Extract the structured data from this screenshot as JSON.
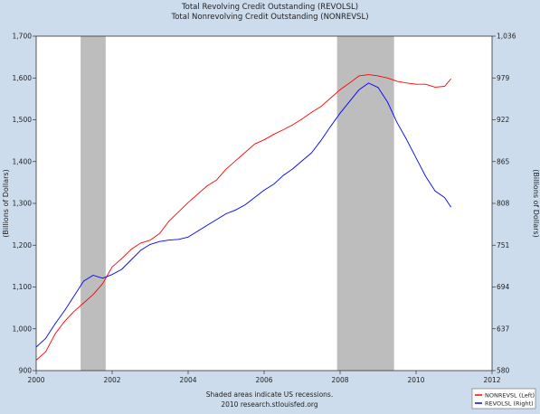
{
  "chart_data": {
    "type": "line",
    "title": "Total Revolving Credit Outstanding (REVOLSL)",
    "subtitle": "Total Nonrevolving Credit Outstanding (NONREVSL)",
    "ylabel_left": "(Billions of Dollars)",
    "ylabel_right": "(Billions of Dollars)",
    "xlim": [
      2000,
      2012
    ],
    "ylim_left": [
      900,
      1700
    ],
    "ylim_right": [
      580,
      1036
    ],
    "x_ticks": [
      2000,
      2002,
      2004,
      2006,
      2008,
      2010,
      2012
    ],
    "x_tick_labels": [
      "2000",
      "2002",
      "2004",
      "2006",
      "2008",
      "2010",
      "2012"
    ],
    "y_left_ticks": [
      900,
      1000,
      1100,
      1200,
      1300,
      1400,
      1500,
      1600,
      1700
    ],
    "y_left_tick_labels": [
      "900",
      "1,000",
      "1,100",
      "1,200",
      "1,300",
      "1,400",
      "1,500",
      "1,600",
      "1,700"
    ],
    "y_right_ticks": [
      580,
      637,
      694,
      751,
      808,
      865,
      922,
      979,
      1036
    ],
    "y_right_tick_labels": [
      "580",
      "637",
      "694",
      "751",
      "808",
      "865",
      "922",
      "979",
      "1,036"
    ],
    "recessions": [
      [
        2001.17,
        2001.83
      ],
      [
        2007.92,
        2009.42
      ]
    ],
    "grid": false,
    "legend_position": "bottom-right",
    "footer_lines": [
      "Shaded areas indicate US recessions.",
      "2010 research.stlouisfed.org"
    ],
    "series": [
      {
        "name": "NONREVSL (Left)",
        "axis": "left",
        "color": "#ff0000",
        "points": [
          [
            2000.0,
            925
          ],
          [
            2000.25,
            945
          ],
          [
            2000.5,
            988
          ],
          [
            2000.75,
            1018
          ],
          [
            2001.0,
            1042
          ],
          [
            2001.25,
            1062
          ],
          [
            2001.5,
            1082
          ],
          [
            2001.75,
            1108
          ],
          [
            2002.0,
            1148
          ],
          [
            2002.25,
            1168
          ],
          [
            2002.5,
            1190
          ],
          [
            2002.75,
            1205
          ],
          [
            2003.0,
            1212
          ],
          [
            2003.25,
            1228
          ],
          [
            2003.5,
            1258
          ],
          [
            2003.75,
            1280
          ],
          [
            2004.0,
            1302
          ],
          [
            2004.25,
            1322
          ],
          [
            2004.5,
            1342
          ],
          [
            2004.75,
            1356
          ],
          [
            2005.0,
            1382
          ],
          [
            2005.25,
            1402
          ],
          [
            2005.5,
            1422
          ],
          [
            2005.75,
            1442
          ],
          [
            2006.0,
            1452
          ],
          [
            2006.25,
            1465
          ],
          [
            2006.5,
            1476
          ],
          [
            2006.75,
            1488
          ],
          [
            2007.0,
            1502
          ],
          [
            2007.25,
            1518
          ],
          [
            2007.5,
            1532
          ],
          [
            2007.75,
            1552
          ],
          [
            2008.0,
            1572
          ],
          [
            2008.25,
            1588
          ],
          [
            2008.5,
            1605
          ],
          [
            2008.75,
            1608
          ],
          [
            2009.0,
            1605
          ],
          [
            2009.25,
            1600
          ],
          [
            2009.5,
            1592
          ],
          [
            2009.75,
            1588
          ],
          [
            2010.0,
            1585
          ],
          [
            2010.25,
            1585
          ],
          [
            2010.5,
            1578
          ],
          [
            2010.75,
            1580
          ],
          [
            2010.92,
            1598
          ]
        ]
      },
      {
        "name": "REVOLSL (Right)",
        "axis": "right",
        "color": "#0000ff",
        "points": [
          [
            2000.0,
            612
          ],
          [
            2000.25,
            624
          ],
          [
            2000.5,
            644
          ],
          [
            2000.75,
            662
          ],
          [
            2001.0,
            682
          ],
          [
            2001.25,
            702
          ],
          [
            2001.5,
            710
          ],
          [
            2001.75,
            706
          ],
          [
            2002.0,
            711
          ],
          [
            2002.25,
            718
          ],
          [
            2002.5,
            731
          ],
          [
            2002.75,
            744
          ],
          [
            2003.0,
            752
          ],
          [
            2003.25,
            756
          ],
          [
            2003.5,
            758
          ],
          [
            2003.75,
            759
          ],
          [
            2004.0,
            762
          ],
          [
            2004.25,
            770
          ],
          [
            2004.5,
            778
          ],
          [
            2004.75,
            786
          ],
          [
            2005.0,
            794
          ],
          [
            2005.25,
            799
          ],
          [
            2005.5,
            806
          ],
          [
            2005.75,
            816
          ],
          [
            2006.0,
            826
          ],
          [
            2006.25,
            834
          ],
          [
            2006.5,
            846
          ],
          [
            2006.75,
            855
          ],
          [
            2007.0,
            866
          ],
          [
            2007.25,
            877
          ],
          [
            2007.5,
            894
          ],
          [
            2007.75,
            913
          ],
          [
            2008.0,
            931
          ],
          [
            2008.25,
            947
          ],
          [
            2008.5,
            963
          ],
          [
            2008.75,
            972
          ],
          [
            2009.0,
            966
          ],
          [
            2009.25,
            946
          ],
          [
            2009.5,
            918
          ],
          [
            2009.75,
            895
          ],
          [
            2010.0,
            870
          ],
          [
            2010.25,
            845
          ],
          [
            2010.5,
            825
          ],
          [
            2010.75,
            816
          ],
          [
            2010.92,
            803
          ]
        ]
      }
    ]
  },
  "colors": {
    "background": "#cddcec",
    "plot_background": "#ffffff",
    "recession_shade": "#bdbdbd",
    "axis": "#333333"
  }
}
